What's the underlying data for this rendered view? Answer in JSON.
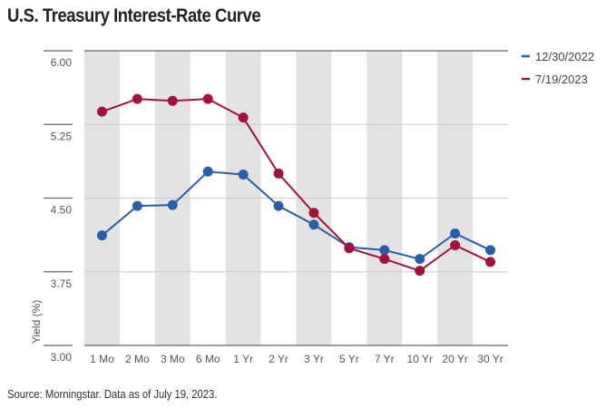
{
  "title": "U.S. Treasury Interest-Rate Curve",
  "source": "Source: Morningstar. Data as of July 19, 2023.",
  "chart_data": {
    "type": "line",
    "title": "U.S. Treasury Interest-Rate Curve",
    "xlabel": "",
    "ylabel": "Yield (%)",
    "ylim": [
      3.0,
      6.0
    ],
    "yticks": [
      "3.00",
      "3.75",
      "4.50",
      "5.25",
      "6.00"
    ],
    "categories": [
      "1 Mo",
      "2 Mo",
      "3 Mo",
      "6 Mo",
      "1 Yr",
      "2 Yr",
      "3 Yr",
      "5 Yr",
      "7 Yr",
      "10 Yr",
      "20 Yr",
      "30 Yr"
    ],
    "legend_position": "top-right",
    "series": [
      {
        "name": "12/30/2022",
        "color": "#2a5ea8",
        "values": [
          4.12,
          4.42,
          4.43,
          4.77,
          4.74,
          4.42,
          4.23,
          4.0,
          3.97,
          3.88,
          4.14,
          3.97
        ]
      },
      {
        "name": "7/19/2023",
        "color": "#a3123a",
        "values": [
          5.38,
          5.51,
          5.49,
          5.51,
          5.32,
          4.75,
          4.35,
          3.99,
          3.88,
          3.76,
          4.02,
          3.85
        ]
      }
    ]
  }
}
